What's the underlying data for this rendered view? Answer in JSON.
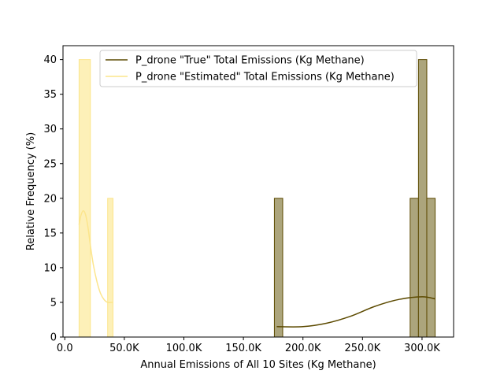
{
  "chart_data": {
    "type": "histogram",
    "title": "",
    "xlabel": "Annual Emissions of All 10 Sites (Kg Methane)",
    "ylabel": "Relative Frequency (%)",
    "xlim": [
      -1500,
      326500
    ],
    "ylim": [
      0,
      42
    ],
    "x_ticks": [
      0,
      50000,
      100000,
      150000,
      200000,
      250000,
      300000
    ],
    "x_tick_labels": [
      "0.0",
      "50.0K",
      "100.0K",
      "150.0K",
      "200.0K",
      "250.0K",
      "300.0K"
    ],
    "y_ticks": [
      0,
      5,
      10,
      15,
      20,
      25,
      30,
      35,
      40
    ],
    "y_tick_labels": [
      "0",
      "5",
      "10",
      "15",
      "20",
      "25",
      "30",
      "35",
      "40"
    ],
    "grid": false,
    "legend_position": "top-right",
    "series": [
      {
        "name": "P_drone \"True\" Total Emissions (Kg Methane)",
        "color": "#5c4a00",
        "fill": "#aca57c",
        "bins": [
          {
            "x0": 176000,
            "x1": 183000,
            "value": 20
          },
          {
            "x0": 290000,
            "x1": 297000,
            "value": 20
          },
          {
            "x0": 297000,
            "x1": 304000,
            "value": 40
          },
          {
            "x0": 304000,
            "x1": 311000,
            "value": 20
          }
        ],
        "kde": [
          [
            178000,
            1.5
          ],
          [
            200000,
            1.5
          ],
          [
            220000,
            2.0
          ],
          [
            240000,
            3.0
          ],
          [
            260000,
            4.4
          ],
          [
            280000,
            5.4
          ],
          [
            300000,
            5.8
          ],
          [
            311000,
            5.5
          ]
        ]
      },
      {
        "name": "P_drone \"Estimated\" Total Emissions (Kg Methane)",
        "color": "#fce58c",
        "fill": "#fdf0b8",
        "bins": [
          {
            "x0": 12000,
            "x1": 21500,
            "value": 40
          },
          {
            "x0": 36000,
            "x1": 40500,
            "value": 20
          }
        ],
        "kde": [
          [
            12000,
            16.2
          ],
          [
            13500,
            17.5
          ],
          [
            15500,
            18.2
          ],
          [
            17500,
            17.6
          ],
          [
            19500,
            15.8
          ],
          [
            21500,
            13.2
          ],
          [
            24000,
            10.4
          ],
          [
            27000,
            8.0
          ],
          [
            30000,
            6.3
          ],
          [
            33000,
            5.4
          ],
          [
            36000,
            5.0
          ],
          [
            40000,
            5.0
          ]
        ]
      }
    ]
  }
}
